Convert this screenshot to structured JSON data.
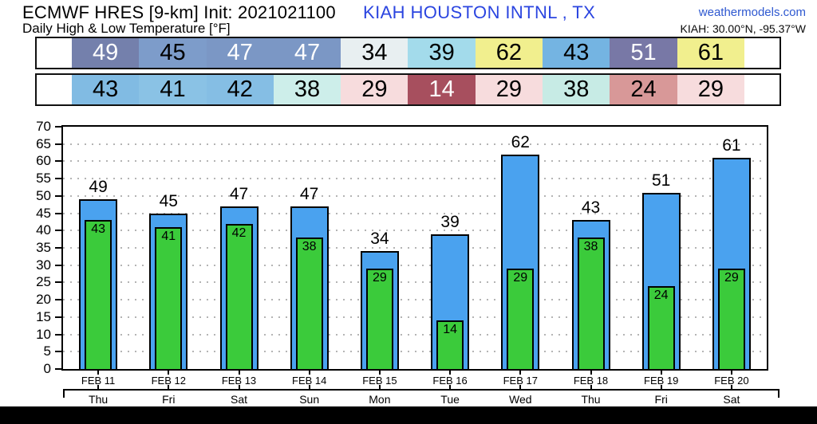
{
  "header": {
    "model_title": "ECMWF HRES [9-km] Init: 2021021100",
    "subtitle": "Daily High & Low Temperature [°F]",
    "station": "KIAH HOUSTON INTNL , TX",
    "site": "weathermodels.com",
    "coords": "KIAH: 30.00°N, -95.37°W"
  },
  "colors": {
    "station_blue": "#2b45e0",
    "site_blue": "#2e58d0",
    "high_bar": "#4aa2ef",
    "low_bar": "#3bcb3b",
    "grid": "#b4b4b4",
    "axis": "#000000"
  },
  "strip_high": {
    "values": [
      "49",
      "45",
      "47",
      "47",
      "34",
      "39",
      "62",
      "43",
      "51",
      "61"
    ],
    "bg": [
      "#7480ac",
      "#7d9cca",
      "#7b97c5",
      "#7b97c5",
      "#e8eff1",
      "#a3dbeb",
      "#f1ef8e",
      "#74b4e2",
      "#7878a6",
      "#f1ef8e"
    ],
    "fg": [
      "#ffffff",
      "#000000",
      "#ffffff",
      "#ffffff",
      "#000000",
      "#000000",
      "#000000",
      "#000000",
      "#ffffff",
      "#000000"
    ]
  },
  "strip_low": {
    "values": [
      "43",
      "41",
      "42",
      "38",
      "29",
      "14",
      "29",
      "38",
      "24",
      "29"
    ],
    "bg": [
      "#81bbe3",
      "#8ac2e5",
      "#85bee4",
      "#cdeeea",
      "#f7dcdd",
      "#a74f5e",
      "#f7dcdd",
      "#c7ebe5",
      "#d89898",
      "#f7dcdd"
    ],
    "fg": [
      "#000000",
      "#000000",
      "#000000",
      "#000000",
      "#000000",
      "#ffffff",
      "#000000",
      "#000000",
      "#000000",
      "#000000"
    ]
  },
  "chart_data": {
    "type": "bar",
    "title": "Daily High & Low Temperature [°F]",
    "station": "KIAH HOUSTON INTNL , TX",
    "categories": [
      "FEB 11",
      "FEB 12",
      "FEB 13",
      "FEB 14",
      "FEB 15",
      "FEB 16",
      "FEB 17",
      "FEB 18",
      "FEB 19",
      "FEB 20"
    ],
    "weekdays": [
      "Thu",
      "Fri",
      "Sat",
      "Sun",
      "Mon",
      "Tue",
      "Wed",
      "Thu",
      "Fri",
      "Sat"
    ],
    "series": [
      {
        "name": "Daily High",
        "values": [
          49,
          45,
          47,
          47,
          34,
          39,
          62,
          43,
          51,
          61
        ],
        "color": "#4aa2ef"
      },
      {
        "name": "Daily Low",
        "values": [
          43,
          41,
          42,
          38,
          29,
          14,
          29,
          38,
          24,
          29
        ],
        "color": "#3bcb3b"
      }
    ],
    "ylim": [
      0,
      70
    ],
    "ytick_step": 5,
    "grid": "dotted horizontal",
    "legend": "none"
  }
}
